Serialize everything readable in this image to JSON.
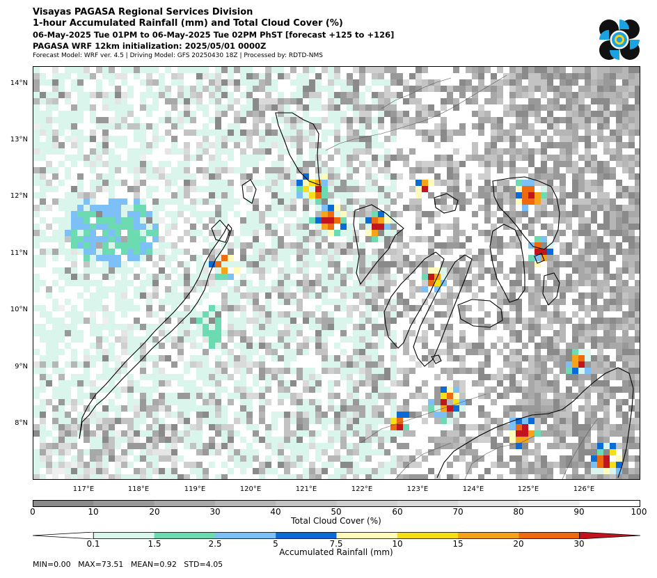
{
  "header": {
    "line1": "Visayas PAGASA Regional Services Division",
    "line2": "1-hour Accumulated Rainfall (mm) and Total Cloud Cover (%)",
    "line3": "06-May-2025 Tue 01PM to 06-May-2025 Tue 02PM PhST [forecast +125 to +126]",
    "line4": "PAGASA WRF 12km initialization: 2025/05/01 0000Z",
    "line5": "Forecast Model: WRF ver. 4.5 | Driving Model: GFS 20250430 18Z | Processed by: RDTD-NMS"
  },
  "logo": {
    "icon": "pagasa-logo",
    "colors": {
      "black": "#111111",
      "blue": "#1aa3e0",
      "yellow": "#f2d21b"
    }
  },
  "map": {
    "lat_labels": [
      "14°N",
      "13°N",
      "12°N",
      "11°N",
      "10°N",
      "9°N",
      "8°N"
    ],
    "lon_labels": [
      "117°E",
      "118°E",
      "119°E",
      "120°E",
      "121°E",
      "122°E",
      "123°E",
      "124°E",
      "125°E",
      "126°E"
    ],
    "lat_range": [
      7.05,
      14.35
    ],
    "lon_range": [
      116.1,
      126.98
    ]
  },
  "cloud_cover": {
    "label": "Total Cloud Cover (%)",
    "ticks": [
      "0",
      "10",
      "20",
      "30",
      "40",
      "50",
      "60",
      "70",
      "80",
      "90",
      "100"
    ],
    "colors": [
      "#8a8a8a",
      "#999999",
      "#a8a8a8",
      "#b6b6b6",
      "#c3c3c3",
      "#cfcfcf",
      "#dadada",
      "#e5e5e5",
      "#efefef",
      "#ffffff"
    ]
  },
  "rainfall": {
    "label": "Accumulated Rainfall (mm)",
    "ticks": [
      "0.1",
      "1.5",
      "2.5",
      "5",
      "7.5",
      "10",
      "15",
      "20",
      "30"
    ],
    "colors": [
      "#daf5ec",
      "#6ddbb1",
      "#7dbff7",
      "#0a6bd6",
      "#fffbbb",
      "#f6df17",
      "#f4a31a",
      "#ee6a0e",
      "#c2141e"
    ]
  },
  "stats": "MIN=0.00   MAX=73.51   MEAN=0.92   STD=4.05"
}
